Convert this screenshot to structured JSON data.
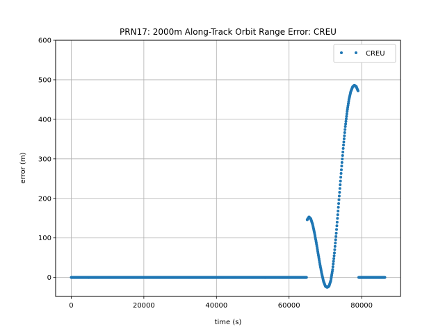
{
  "chart_data": {
    "type": "scatter",
    "title": "PRN17: 2000m Along-Track Orbit Range Error: CREU",
    "xlabel": "time (s)",
    "ylabel": "error (m)",
    "xlim": [
      -4300,
      90700
    ],
    "ylim": [
      -48,
      600
    ],
    "xticks": [
      0,
      20000,
      40000,
      60000,
      80000
    ],
    "xtick_labels": [
      "0",
      "20000",
      "40000",
      "60000",
      "80000"
    ],
    "yticks": [
      0,
      100,
      200,
      300,
      400,
      500,
      600
    ],
    "ytick_labels": [
      "0",
      "100",
      "200",
      "300",
      "400",
      "500",
      "600"
    ],
    "grid": true,
    "legend_position": "top-right",
    "series": [
      {
        "name": "CREU",
        "color": "#1f77b4",
        "marker": "dot",
        "x": [
          0,
          10000,
          20000,
          30000,
          40000,
          50000,
          60000,
          64800,
          65000,
          65500,
          66000,
          66500,
          67000,
          67500,
          68000,
          68500,
          69000,
          69500,
          70000,
          70500,
          71000,
          71500,
          72000,
          72500,
          73000,
          73500,
          74000,
          74500,
          75000,
          75500,
          76000,
          76500,
          77000,
          77500,
          78000,
          78500,
          79000,
          79200,
          80000,
          81000,
          82000,
          83000,
          84000,
          85000,
          86400
        ],
        "y": [
          0,
          0,
          0,
          0,
          0,
          0,
          0,
          0,
          146,
          153,
          148,
          134,
          113,
          88,
          61,
          34,
          10,
          -10,
          -22,
          -25,
          -22,
          -8,
          20,
          62,
          112,
          168,
          225,
          282,
          335,
          382,
          420,
          450,
          470,
          482,
          486,
          483,
          472,
          0,
          0,
          0,
          0,
          0,
          0,
          0,
          0
        ]
      }
    ]
  }
}
